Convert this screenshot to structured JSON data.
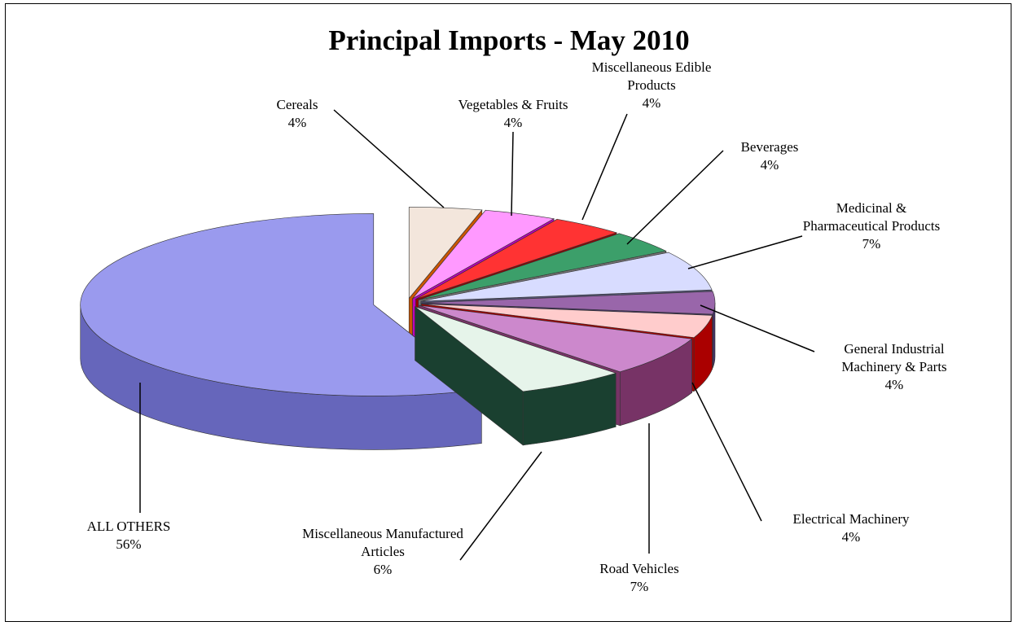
{
  "chart_data": {
    "type": "pie",
    "title": "Principal Imports - May 2010",
    "categories": [
      "Cereals",
      "Vegetables & Fruits",
      "Miscellaneous Edible Products",
      "Beverages",
      "Medicinal & Pharmaceutical Products",
      "General Industrial Machinery & Parts",
      "Electrical Machinery",
      "Road Vehicles",
      "Miscellaneous Manufactured Articles",
      "ALL OTHERS"
    ],
    "values": [
      4,
      4,
      4,
      4,
      7,
      4,
      4,
      7,
      6,
      56
    ],
    "value_labels": [
      "4%",
      "4%",
      "4%",
      "4%",
      "7%",
      "4%",
      "4%",
      "7%",
      "6%",
      "56%"
    ],
    "colors": [
      "#f3e6dc",
      "#ff99ff",
      "#ff3333",
      "#3c9f6a",
      "#d8dcff",
      "#9966aa",
      "#ffcccc",
      "#cc88cc",
      "#e6f4ea",
      "#9a9aee"
    ],
    "side_colors": [
      "#cc5500",
      "#bb00bb",
      "#990000",
      "#777777",
      "#555577",
      "#443366",
      "#aa0000",
      "#773366",
      "#1a4030",
      "#6666bb"
    ]
  }
}
